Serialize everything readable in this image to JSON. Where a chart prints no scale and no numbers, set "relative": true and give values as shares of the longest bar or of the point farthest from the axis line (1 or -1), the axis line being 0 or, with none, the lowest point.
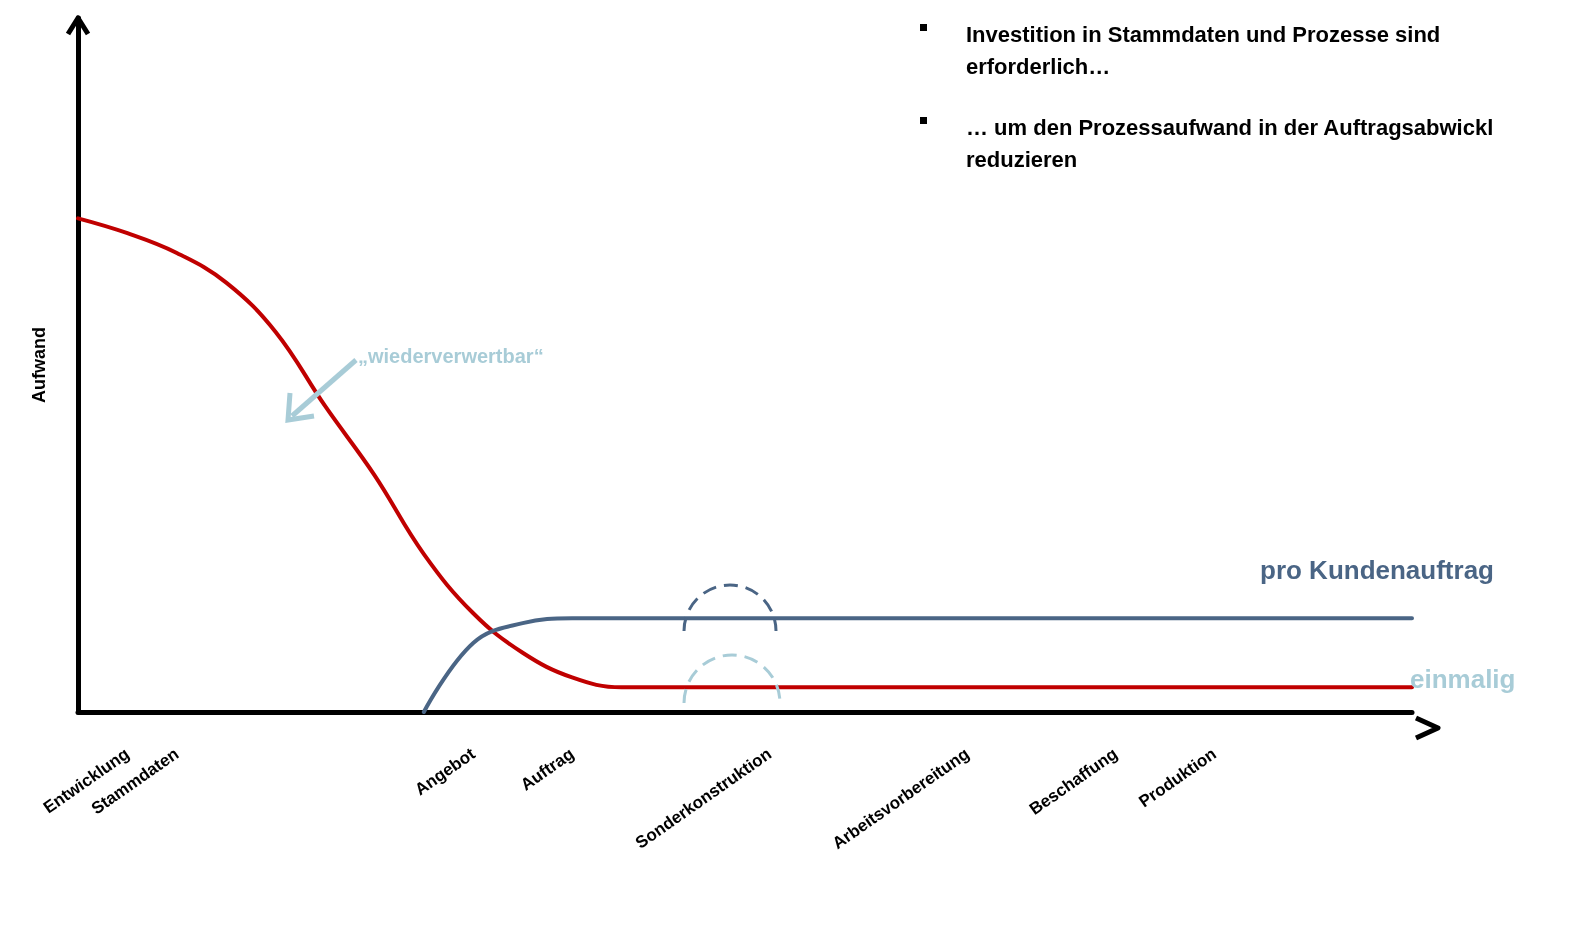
{
  "chart_data": {
    "type": "line",
    "relative": true,
    "ylabel": "Aufwand",
    "categories": [
      null,
      "Entwicklung",
      "Stammdaten",
      null,
      null,
      null,
      null,
      null,
      "Angebot",
      null,
      "Auftrag",
      null,
      null,
      null,
      "Sonderkonstruktion",
      null,
      null,
      null,
      "Arbeitsvorbereitung",
      null,
      null,
      "Beschaffung",
      null,
      "Produktion",
      null,
      null,
      null,
      null
    ],
    "series": [
      {
        "name": "einmalig",
        "color": "#c00000",
        "values": [
          1.0,
          0.97,
          0.93,
          0.87,
          0.77,
          0.62,
          0.48,
          0.32,
          0.2,
          0.12,
          0.07,
          0.05,
          0.05,
          0.05,
          0.05,
          0.05,
          0.05,
          0.05,
          0.05,
          0.05,
          0.05,
          0.05,
          0.05,
          0.05,
          0.05,
          0.05,
          0.05,
          0.05
        ]
      },
      {
        "name": "pro Kundenauftrag",
        "color": "#4a6585",
        "values": [
          null,
          null,
          null,
          null,
          null,
          null,
          null,
          0.0,
          0.14,
          0.18,
          0.19,
          0.19,
          0.19,
          0.19,
          0.19,
          0.19,
          0.19,
          0.19,
          0.19,
          0.19,
          0.19,
          0.19,
          0.19,
          0.19,
          0.19,
          0.19,
          0.19,
          0.19
        ]
      }
    ],
    "annotations": [
      "„wiederverwertbar“",
      "Investition in Stammdaten und Prozesse sind erforderlich…",
      "… um den Prozessaufwand in der Auftragsabwickl reduzieren"
    ],
    "grid": false,
    "legend": false,
    "marker": "none",
    "line_style": "solid"
  }
}
